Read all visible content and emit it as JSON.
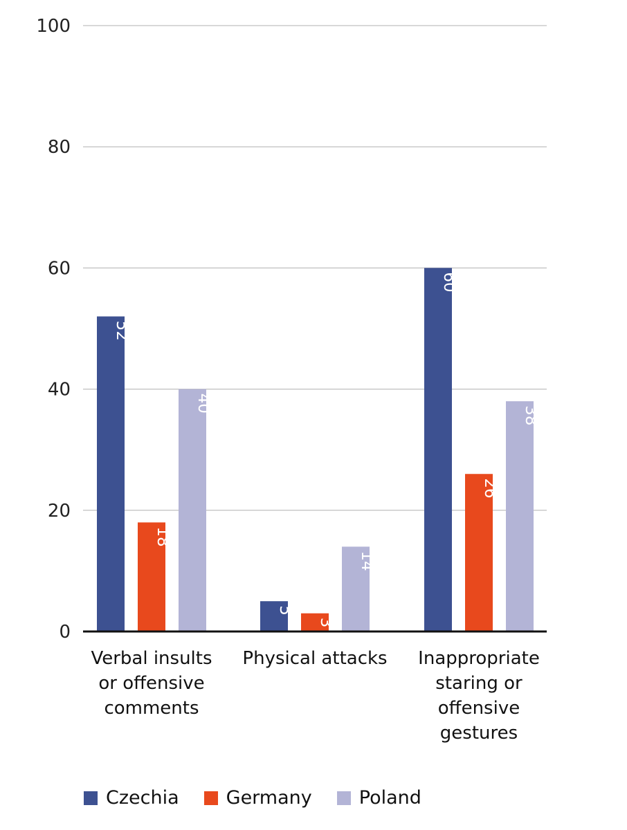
{
  "chart_data": {
    "type": "bar",
    "categories": [
      [
        "Verbal insults",
        "or offensive",
        "comments"
      ],
      [
        "Physical attacks"
      ],
      [
        "Inappropriate",
        "staring or",
        "offensive",
        "gestures"
      ]
    ],
    "series": [
      {
        "name": "Czechia",
        "color": "#3d5191",
        "values": [
          52,
          5,
          60
        ]
      },
      {
        "name": "Germany",
        "color": "#e8491d",
        "values": [
          18,
          3,
          26
        ]
      },
      {
        "name": "Poland",
        "color": "#b3b4d6",
        "values": [
          40,
          14,
          38
        ]
      }
    ],
    "ylim": [
      0,
      100
    ],
    "yticks": [
      0,
      20,
      40,
      60,
      80,
      100
    ],
    "grid": true,
    "legend": "bottom",
    "data_labels": "inside-top-rotated"
  }
}
